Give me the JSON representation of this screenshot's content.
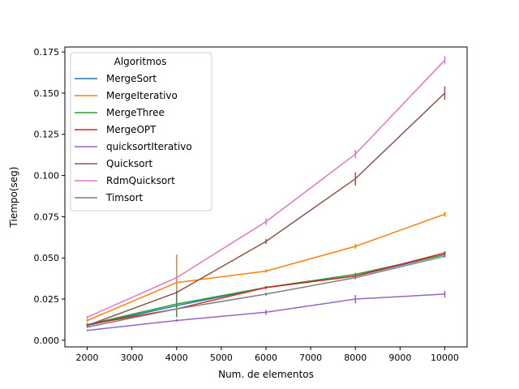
{
  "chart_data": {
    "type": "line",
    "title": "",
    "xlabel": "Num. de elementos",
    "ylabel": "Tiempo(seg)",
    "xlim": [
      1500,
      10500
    ],
    "ylim": [
      -0.004,
      0.178
    ],
    "xticks": [
      2000,
      3000,
      4000,
      5000,
      6000,
      7000,
      8000,
      9000,
      10000
    ],
    "xtick_labels": [
      "2000",
      "3000",
      "4000",
      "5000",
      "6000",
      "7000",
      "8000",
      "9000",
      "10000"
    ],
    "yticks": [
      0.0,
      0.025,
      0.05,
      0.075,
      0.1,
      0.125,
      0.15,
      0.175
    ],
    "ytick_labels": [
      "0.000",
      "0.025",
      "0.050",
      "0.075",
      "0.100",
      "0.125",
      "0.150",
      "0.175"
    ],
    "grid": false,
    "legend": {
      "title": "Algoritmos",
      "placement": "top-left"
    },
    "x": [
      2000,
      4000,
      6000,
      8000,
      10000
    ],
    "series": [
      {
        "name": "MergeSort",
        "color": "#1f77b4",
        "values": [
          0.009,
          0.021,
          0.032,
          0.039,
          0.052
        ],
        "errors": [
          0.0005,
          0.0008,
          0.0008,
          0.001,
          0.001
        ]
      },
      {
        "name": "MergeIterativo",
        "color": "#ff7f0e",
        "values": [
          0.012,
          0.035,
          0.042,
          0.057,
          0.0765
        ],
        "errors": [
          0.001,
          0.017,
          0.001,
          0.0015,
          0.0015
        ]
      },
      {
        "name": "MergeThree",
        "color": "#2ca02c",
        "values": [
          0.0095,
          0.022,
          0.032,
          0.04,
          0.052
        ],
        "errors": [
          0.0008,
          0.008,
          0.0008,
          0.001,
          0.001
        ]
      },
      {
        "name": "MergeOPT",
        "color": "#d62728",
        "values": [
          0.0095,
          0.019,
          0.032,
          0.039,
          0.053
        ],
        "errors": [
          0.0005,
          0.0008,
          0.0008,
          0.001,
          0.001
        ]
      },
      {
        "name": "quicksortIterativo",
        "color": "#9467bd",
        "values": [
          0.006,
          0.012,
          0.017,
          0.025,
          0.028
        ],
        "errors": [
          0.0005,
          0.0008,
          0.0015,
          0.0025,
          0.002
        ]
      },
      {
        "name": "Quicksort",
        "color": "#8c564b",
        "values": [
          0.009,
          0.029,
          0.06,
          0.098,
          0.15
        ],
        "errors": [
          0.0008,
          0.001,
          0.0015,
          0.004,
          0.004
        ]
      },
      {
        "name": "RdmQuicksort",
        "color": "#e377c2",
        "values": [
          0.014,
          0.038,
          0.072,
          0.113,
          0.17
        ],
        "errors": [
          0.0008,
          0.0008,
          0.002,
          0.0025,
          0.0025
        ]
      },
      {
        "name": "Timsort",
        "color": "#7f7f7f",
        "values": [
          0.008,
          0.019,
          0.028,
          0.038,
          0.051
        ],
        "errors": [
          0.0005,
          0.0008,
          0.001,
          0.001,
          0.001
        ]
      }
    ]
  }
}
